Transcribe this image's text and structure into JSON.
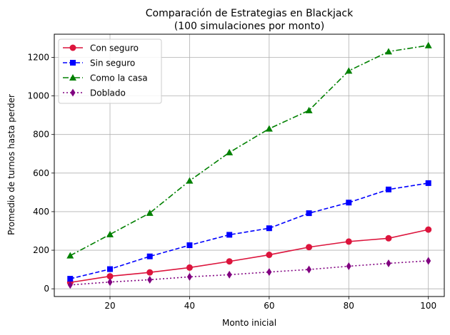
{
  "chart_data": {
    "type": "line",
    "title": "Comparación de Estrategias en Blackjack",
    "subtitle": "(100 simulaciones por monto)",
    "xlabel": "Monto inicial",
    "ylabel": "Promedio de turnos hasta perder",
    "xlim": [
      6,
      104
    ],
    "ylim": [
      -40,
      1320
    ],
    "xticks": [
      20,
      40,
      60,
      80,
      100
    ],
    "yticks": [
      0,
      200,
      400,
      600,
      800,
      1000,
      1200
    ],
    "grid": true,
    "legend_position": "top-left",
    "x": [
      10,
      20,
      30,
      40,
      50,
      60,
      70,
      80,
      90,
      100
    ],
    "series": [
      {
        "name": "Con seguro",
        "color": "#dc143c",
        "linestyle": "solid",
        "marker": "circle",
        "values": [
          33,
          65,
          85,
          110,
          142,
          176,
          216,
          245,
          262,
          307
        ]
      },
      {
        "name": "Sin seguro",
        "color": "#0000ff",
        "linestyle": "dashed",
        "marker": "square",
        "values": [
          52,
          102,
          168,
          226,
          280,
          314,
          392,
          447,
          515,
          548
        ]
      },
      {
        "name": "Como la casa",
        "color": "#008000",
        "linestyle": "dashdot",
        "marker": "triangle",
        "values": [
          172,
          282,
          393,
          560,
          707,
          830,
          925,
          1130,
          1230,
          1262
        ]
      },
      {
        "name": "Doblado",
        "color": "#800080",
        "linestyle": "dotted",
        "marker": "diamond",
        "values": [
          20,
          35,
          47,
          62,
          73,
          87,
          100,
          117,
          132,
          145
        ]
      }
    ]
  }
}
